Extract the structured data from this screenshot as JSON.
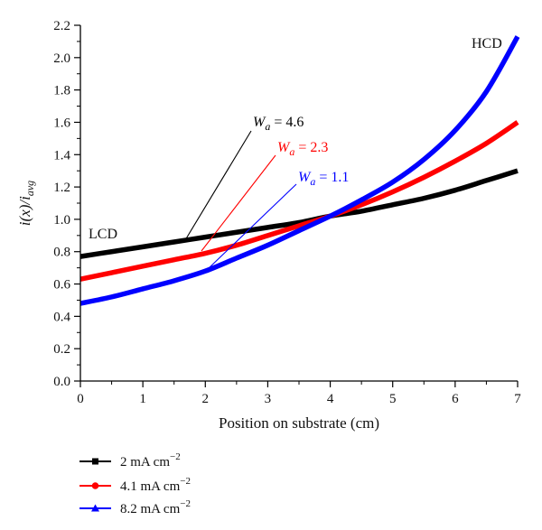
{
  "chart_data": {
    "type": "line",
    "xlabel": "Position on substrate (cm)",
    "ylabel": {
      "main": "i(x)/i",
      "sub": "avg"
    },
    "xlim": [
      0,
      7
    ],
    "ylim": [
      0.0,
      2.2
    ],
    "x_ticks": [
      "0",
      "1",
      "2",
      "3",
      "4",
      "5",
      "6",
      "7"
    ],
    "y_ticks": [
      "0.0",
      "0.2",
      "0.4",
      "0.6",
      "0.8",
      "1.0",
      "1.2",
      "1.4",
      "1.6",
      "1.8",
      "2.0",
      "2.2"
    ],
    "grid": false,
    "legend_position": "bottom-left, below the plot",
    "series": [
      {
        "name": "2 mA cm⁻²",
        "legend_value": "2",
        "color": "#000000",
        "marker": "square",
        "x": [
          0,
          0.5,
          1,
          1.5,
          2,
          2.5,
          3,
          3.5,
          4,
          4.5,
          5,
          5.5,
          6,
          6.5,
          7
        ],
        "y": [
          0.77,
          0.8,
          0.83,
          0.86,
          0.89,
          0.92,
          0.95,
          0.98,
          1.02,
          1.05,
          1.09,
          1.13,
          1.18,
          1.24,
          1.3
        ]
      },
      {
        "name": "4.1 mA cm⁻²",
        "legend_value": "4.1",
        "color": "#ff0000",
        "marker": "circle",
        "x": [
          0,
          0.5,
          1,
          1.5,
          2,
          2.5,
          3,
          3.5,
          4,
          4.5,
          5,
          5.5,
          6,
          6.5,
          7
        ],
        "y": [
          0.63,
          0.67,
          0.71,
          0.75,
          0.79,
          0.84,
          0.9,
          0.96,
          1.02,
          1.09,
          1.17,
          1.26,
          1.36,
          1.47,
          1.6
        ]
      },
      {
        "name": "8.2 mA cm⁻²",
        "legend_value": "8.2",
        "color": "#0000ff",
        "marker": "triangle",
        "x": [
          0,
          0.5,
          1,
          1.5,
          2,
          2.5,
          3,
          3.5,
          4,
          4.5,
          5,
          5.5,
          6,
          6.5,
          7
        ],
        "y": [
          0.48,
          0.52,
          0.57,
          0.62,
          0.68,
          0.76,
          0.84,
          0.93,
          1.02,
          1.12,
          1.23,
          1.37,
          1.55,
          1.79,
          2.13
        ]
      }
    ],
    "annotations": [
      {
        "symbol": "W",
        "sub": "a",
        "value": " = 4.6",
        "color": "#000000"
      },
      {
        "symbol": "W",
        "sub": "a",
        "value": " = 2.3",
        "color": "#ff0000"
      },
      {
        "symbol": "W",
        "sub": "a",
        "value": " = 1.1",
        "color": "#0000ff"
      }
    ],
    "end_labels": {
      "left": "LCD",
      "right": "HCD"
    },
    "legend_unit": {
      "base": "mA cm",
      "exp": "−2"
    }
  }
}
